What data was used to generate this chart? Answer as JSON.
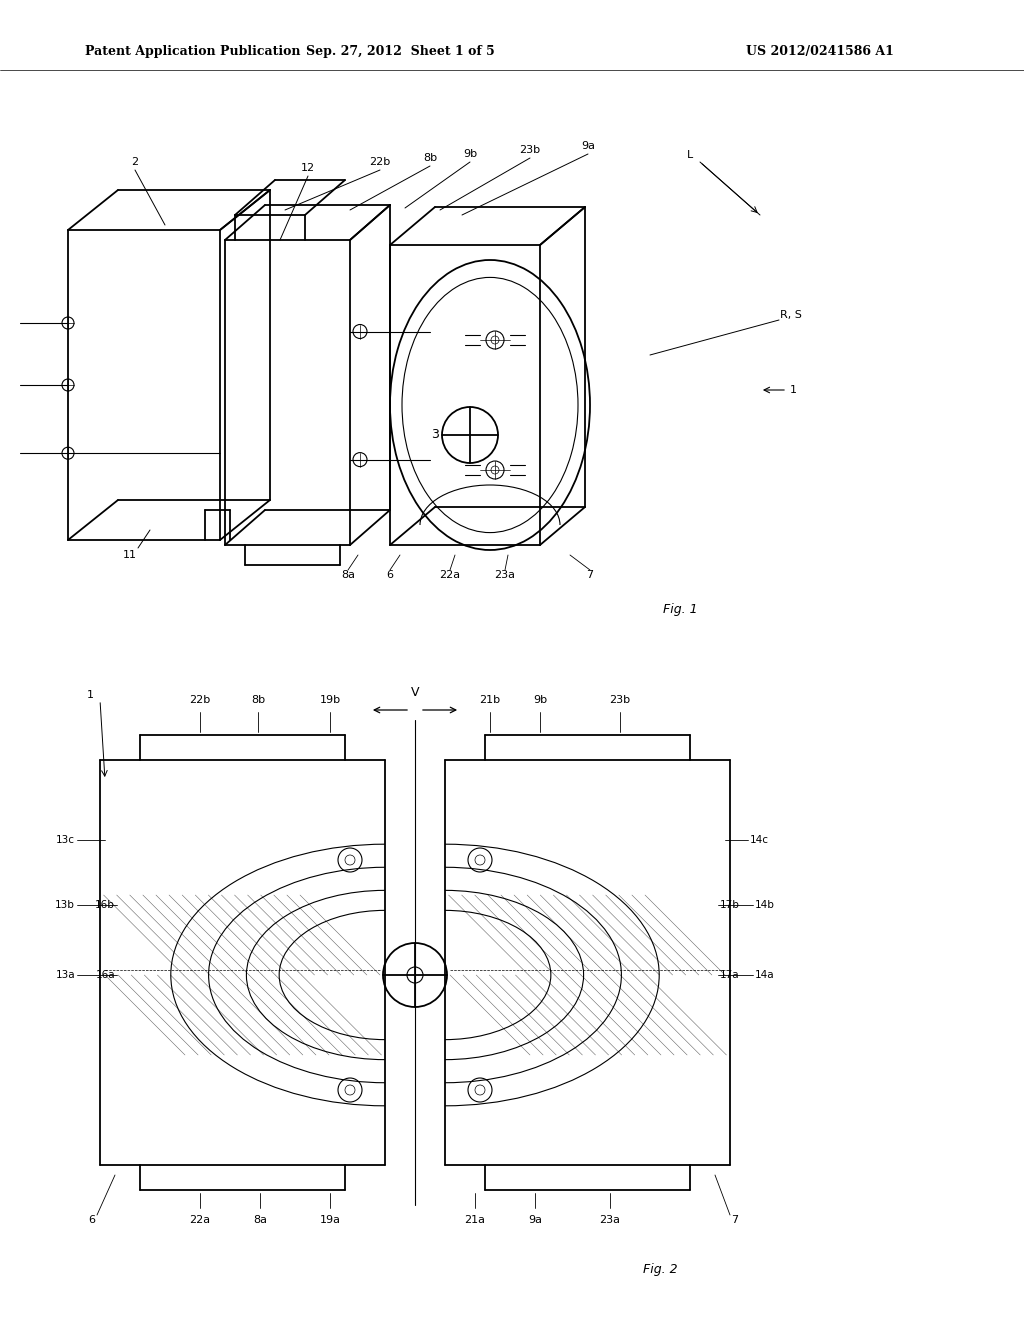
{
  "bg_color": "#ffffff",
  "line_color": "#000000",
  "header_text": "Patent Application Publication",
  "header_date": "Sep. 27, 2012  Sheet 1 of 5",
  "header_patent": "US 2012/0241586 A1",
  "fig1_caption": "Fig. 1",
  "fig2_caption": "Fig. 2"
}
